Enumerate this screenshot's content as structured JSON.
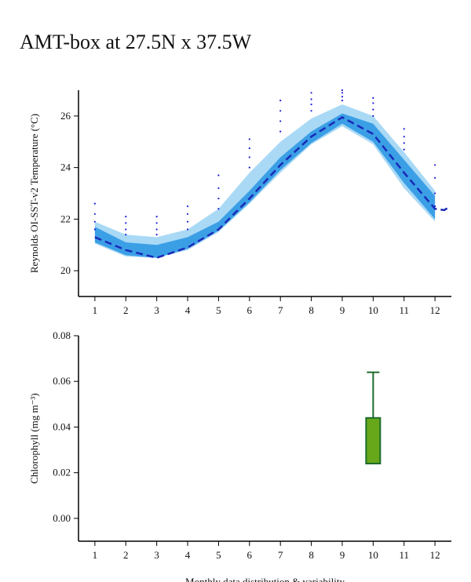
{
  "title": "AMT-box at 27.5N x 37.5W",
  "chart_data": [
    {
      "type": "line",
      "ylabel": "Reynolds OI-SST-v2 Temperature (°C)",
      "xlim": [
        0.47,
        12.53
      ],
      "xticks": [
        1,
        2,
        3,
        4,
        5,
        6,
        7,
        8,
        9,
        10,
        11,
        12
      ],
      "ylim": [
        19,
        27
      ],
      "yticks": [
        20,
        22,
        24,
        26
      ],
      "bands": [
        {
          "color": "#a9d9f5",
          "x": [
            1,
            2,
            3,
            4,
            5,
            6,
            7,
            8,
            9,
            10,
            11,
            12
          ],
          "upper": [
            21.9,
            21.4,
            21.3,
            21.6,
            22.4,
            23.8,
            25.0,
            25.9,
            26.45,
            26.0,
            24.6,
            23.1
          ],
          "lower": [
            21.05,
            20.55,
            20.5,
            20.8,
            21.5,
            22.6,
            23.8,
            24.9,
            25.6,
            24.9,
            23.2,
            21.9
          ]
        },
        {
          "color": "#3b9fe6",
          "x": [
            1,
            2,
            3,
            4,
            5,
            6,
            7,
            8,
            9,
            10,
            11,
            12
          ],
          "upper": [
            21.7,
            21.1,
            21.0,
            21.3,
            21.9,
            23.1,
            24.4,
            25.4,
            26.1,
            25.7,
            24.3,
            22.9
          ],
          "lower": [
            21.1,
            20.6,
            20.5,
            20.85,
            21.55,
            22.65,
            23.9,
            24.95,
            25.7,
            25.0,
            23.4,
            22.0
          ]
        }
      ],
      "series": [
        {
          "color": "#1a2ab8",
          "dash": true,
          "x": [
            1,
            2,
            3,
            4,
            5,
            6,
            7,
            8,
            9,
            10,
            11,
            12,
            12.3,
            12.5
          ],
          "values": [
            21.3,
            20.8,
            20.5,
            20.9,
            21.6,
            22.8,
            24.1,
            25.2,
            25.95,
            25.3,
            23.8,
            22.4,
            22.35,
            22.5
          ]
        }
      ],
      "scatter": {
        "color": "#1c1cd6",
        "x": [
          1,
          1,
          1,
          1,
          2,
          2,
          2,
          2,
          3,
          3,
          3,
          3,
          4,
          4,
          4,
          4,
          5,
          5,
          5,
          5,
          6,
          6,
          6,
          6,
          7,
          7,
          7,
          7,
          8,
          8,
          8,
          8,
          9,
          9,
          9,
          9,
          10,
          10,
          10,
          10,
          11,
          11,
          11,
          11,
          12,
          12,
          12,
          12
        ],
        "y": [
          21.6,
          21.9,
          22.2,
          22.6,
          21.4,
          21.6,
          21.85,
          22.1,
          21.4,
          21.6,
          21.85,
          22.1,
          21.6,
          21.9,
          22.2,
          22.5,
          22.4,
          22.8,
          23.2,
          23.7,
          24.0,
          24.4,
          24.75,
          25.1,
          25.4,
          25.8,
          26.2,
          26.6,
          26.2,
          26.45,
          26.65,
          26.9,
          26.6,
          26.75,
          26.9,
          27.0,
          26.0,
          26.25,
          26.5,
          26.7,
          24.7,
          24.95,
          25.2,
          25.5,
          22.5,
          23.0,
          23.6,
          24.1
        ]
      }
    },
    {
      "type": "box",
      "ylabel": "Chlorophyll (mg m⁻³)",
      "xlabel": "Monthly data distribution & variability",
      "xlim": [
        0.47,
        12.53
      ],
      "xticks": [
        1,
        2,
        3,
        4,
        5,
        6,
        7,
        8,
        9,
        10,
        11,
        12
      ],
      "ylim": [
        -0.01,
        0.08
      ],
      "yticks": [
        {
          "value": 0,
          "label": "0.00"
        },
        {
          "value": 0.02,
          "label": "0.02"
        },
        {
          "value": 0.04,
          "label": "0.04"
        },
        {
          "value": 0.06,
          "label": "0.06"
        },
        {
          "value": 0.08,
          "label": "0.08"
        }
      ],
      "color": "#66a81a",
      "edge_color": "#1d6b2c",
      "x": [
        10
      ],
      "whislo": [
        0.024
      ],
      "q1": [
        0.024
      ],
      "q3": [
        0.044
      ],
      "whishi": [
        0.064
      ]
    }
  ]
}
